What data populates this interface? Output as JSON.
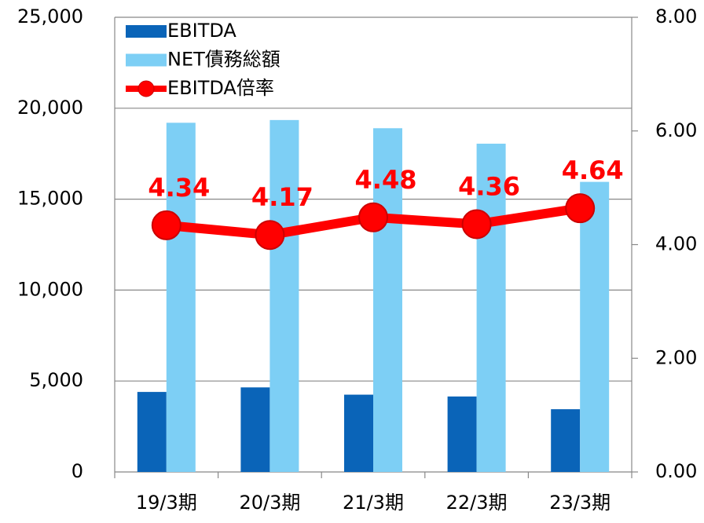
{
  "chart_data": {
    "type": "bar",
    "categories": [
      "19/3期",
      "20/3期",
      "21/3期",
      "22/3期",
      "23/3期"
    ],
    "series": [
      {
        "name": "EBITDA",
        "color": "#0a64b8",
        "values": [
          4400,
          4650,
          4250,
          4150,
          3450
        ]
      },
      {
        "name": "NET債務総額",
        "color": "#7dcff5",
        "values": [
          19200,
          19350,
          18900,
          18050,
          15950
        ]
      },
      {
        "name": "EBITDA倍率",
        "color": "#ff0000",
        "type": "line",
        "axis": "y2",
        "values": [
          4.34,
          4.17,
          4.48,
          4.36,
          4.64
        ]
      }
    ],
    "ylim": [
      0,
      25000
    ],
    "yticks": [
      0,
      {
        "value": 5000,
        "label": "5,000"
      },
      {
        "value": 10000,
        "label": "10,000"
      },
      {
        "value": 15000,
        "label": "15,000"
      },
      {
        "value": 20000,
        "label": "20,000"
      },
      {
        "value": 25000,
        "label": "25,000"
      }
    ],
    "y2lim": [
      0,
      8
    ],
    "y2ticks": [
      {
        "value": 0,
        "label": "0.00"
      },
      {
        "value": 2,
        "label": "2.00"
      },
      {
        "value": 4,
        "label": "4.00"
      },
      {
        "value": 6,
        "label": "6.00"
      },
      {
        "value": 8,
        "label": "8.00"
      }
    ],
    "grid": true,
    "legend": "upper left"
  }
}
